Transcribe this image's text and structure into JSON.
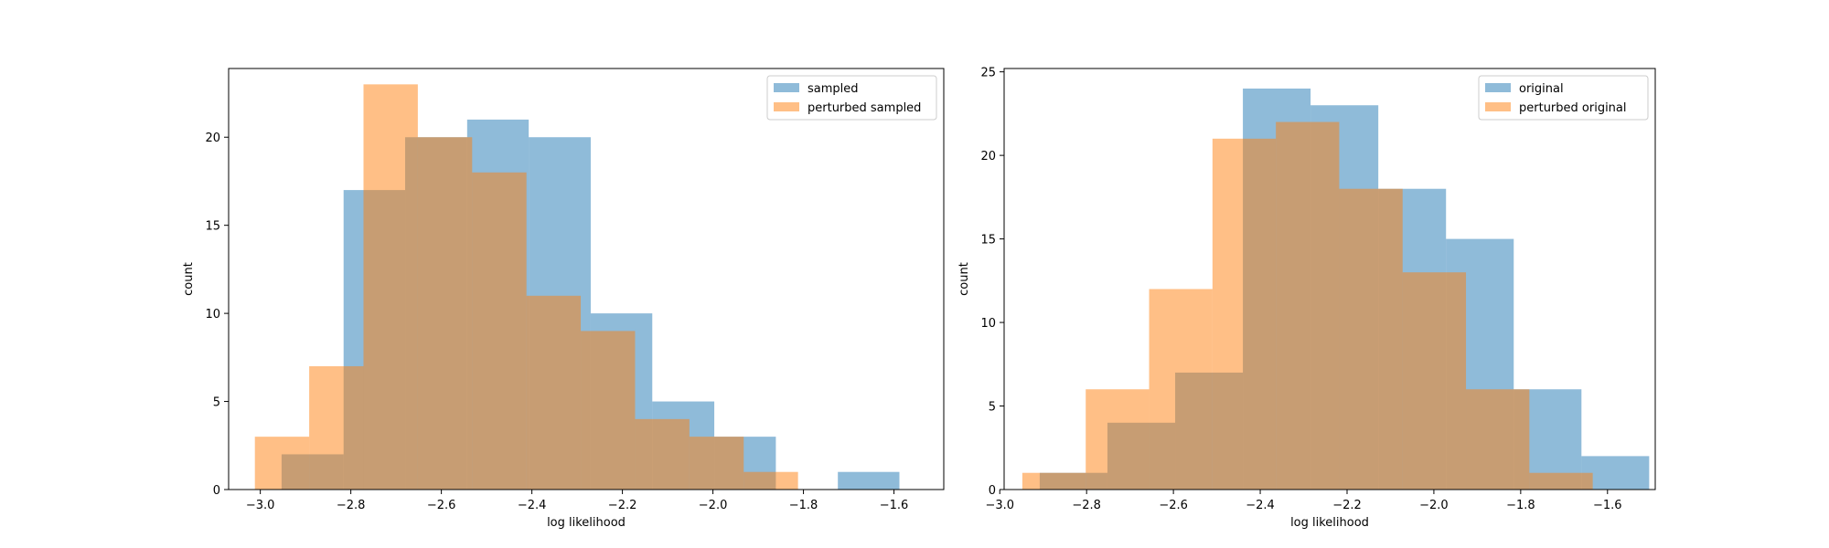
{
  "chart_data": [
    {
      "type": "histogram",
      "xlabel": "log likelihood",
      "ylabel": "count",
      "xlim": [
        -3.07,
        -1.49
      ],
      "ylim": [
        0,
        23.9
      ],
      "xticks": [
        -3.0,
        -2.8,
        -2.6,
        -2.4,
        -2.2,
        -2.0,
        -1.8,
        -1.6
      ],
      "xtick_labels": [
        "−3.0",
        "−2.8",
        "−2.6",
        "−2.4",
        "−2.2",
        "−2.0",
        "−1.8",
        "−1.6"
      ],
      "yticks": [
        0,
        5,
        10,
        15,
        20
      ],
      "ytick_labels": [
        "0",
        "5",
        "10",
        "15",
        "20"
      ],
      "legend_position": "upper right",
      "series": [
        {
          "name": "sampled",
          "color": "#1f77b4",
          "alpha": 0.5,
          "bin_edges": [
            -2.953,
            -2.816,
            -2.68,
            -2.543,
            -2.407,
            -2.27,
            -2.134,
            -1.997,
            -1.861,
            -1.724,
            -1.588
          ],
          "counts": [
            2,
            17,
            20,
            21,
            20,
            10,
            5,
            3,
            0,
            1
          ]
        },
        {
          "name": "perturbed sampled",
          "color": "#ff7f0e",
          "alpha": 0.5,
          "bin_edges": [
            -3.012,
            -2.892,
            -2.772,
            -2.652,
            -2.532,
            -2.412,
            -2.292,
            -2.172,
            -2.052,
            -1.932,
            -1.812
          ],
          "counts": [
            3,
            7,
            23,
            20,
            18,
            11,
            9,
            4,
            3,
            1
          ]
        }
      ]
    },
    {
      "type": "histogram",
      "xlabel": "log likelihood",
      "ylabel": "count",
      "xlim": [
        -2.99,
        -1.49
      ],
      "ylim": [
        0,
        25.2
      ],
      "xticks": [
        -3.0,
        -2.8,
        -2.6,
        -2.4,
        -2.2,
        -2.0,
        -1.8,
        -1.6
      ],
      "xtick_labels": [
        "−3.0",
        "−2.8",
        "−2.6",
        "−2.4",
        "−2.2",
        "−2.0",
        "−1.8",
        "−1.6"
      ],
      "yticks": [
        0,
        5,
        10,
        15,
        20,
        25
      ],
      "ytick_labels": [
        "0",
        "5",
        "10",
        "15",
        "20",
        "25"
      ],
      "legend_position": "upper right",
      "series": [
        {
          "name": "original",
          "color": "#1f77b4",
          "alpha": 0.5,
          "bin_edges": [
            -2.908,
            -2.752,
            -2.596,
            -2.44,
            -2.284,
            -2.128,
            -1.972,
            -1.816,
            -1.66,
            -1.504,
            -1.348
          ],
          "counts": [
            1,
            4,
            7,
            24,
            23,
            18,
            15,
            6,
            2,
            0
          ]
        },
        {
          "name": "perturbed original",
          "color": "#ff7f0e",
          "alpha": 0.5,
          "bin_edges": [
            -2.948,
            -2.802,
            -2.656,
            -2.51,
            -2.364,
            -2.218,
            -2.072,
            -1.926,
            -1.78,
            -1.634
          ],
          "counts": [
            1,
            6,
            12,
            21,
            22,
            18,
            13,
            6,
            1
          ]
        }
      ]
    }
  ]
}
